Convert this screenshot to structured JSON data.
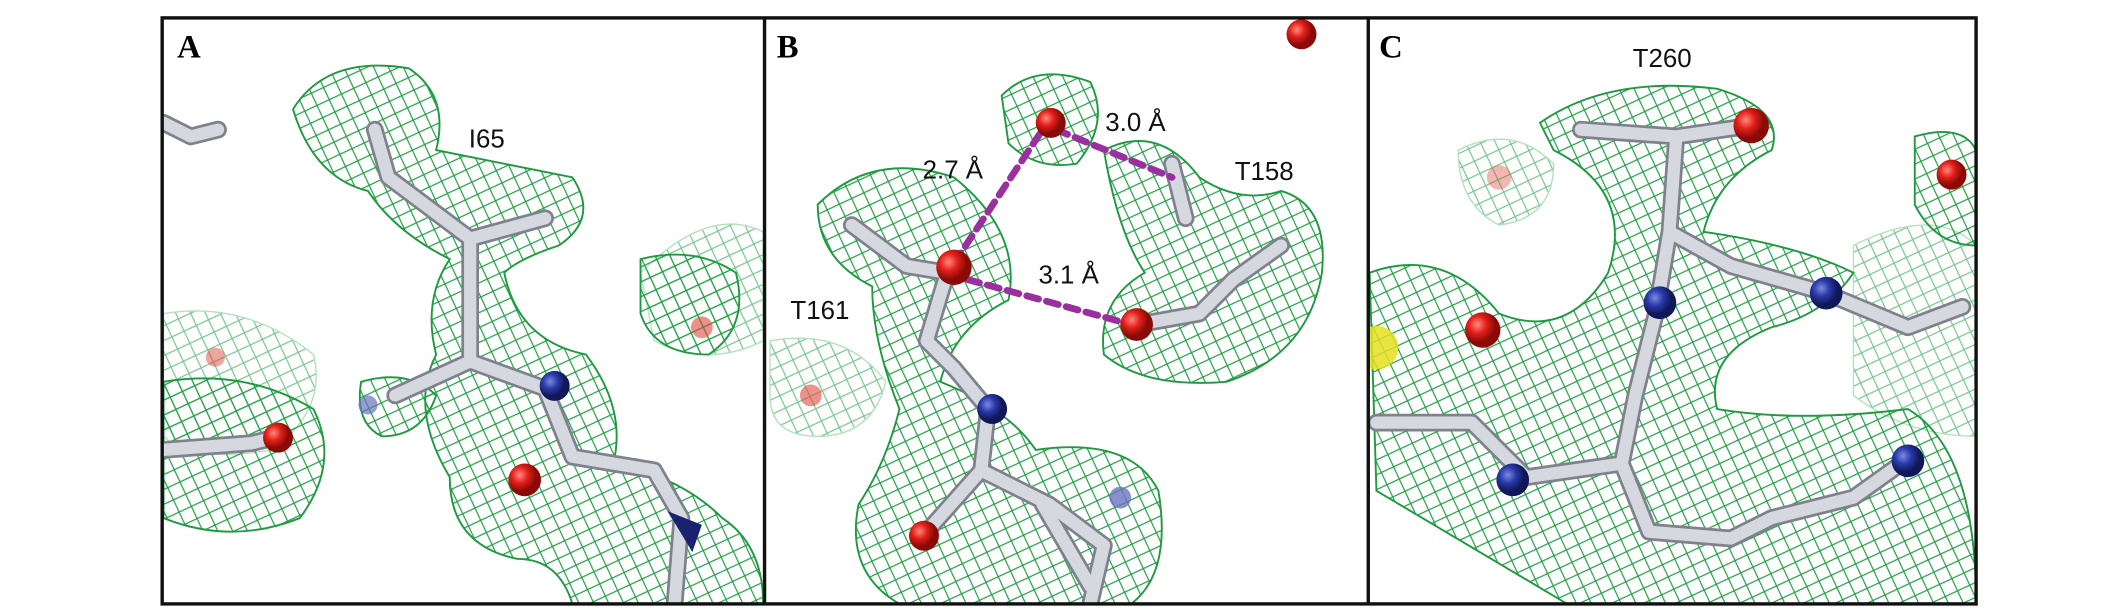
{
  "panels": [
    {
      "label": "A",
      "residues": [
        "I65"
      ]
    },
    {
      "label": "B",
      "residues": [
        "T161",
        "T158"
      ],
      "distances": [
        "2.7 Å",
        "3.0 Å",
        "3.1 Å"
      ]
    },
    {
      "label": "C",
      "residues": [
        "T260"
      ]
    }
  ]
}
